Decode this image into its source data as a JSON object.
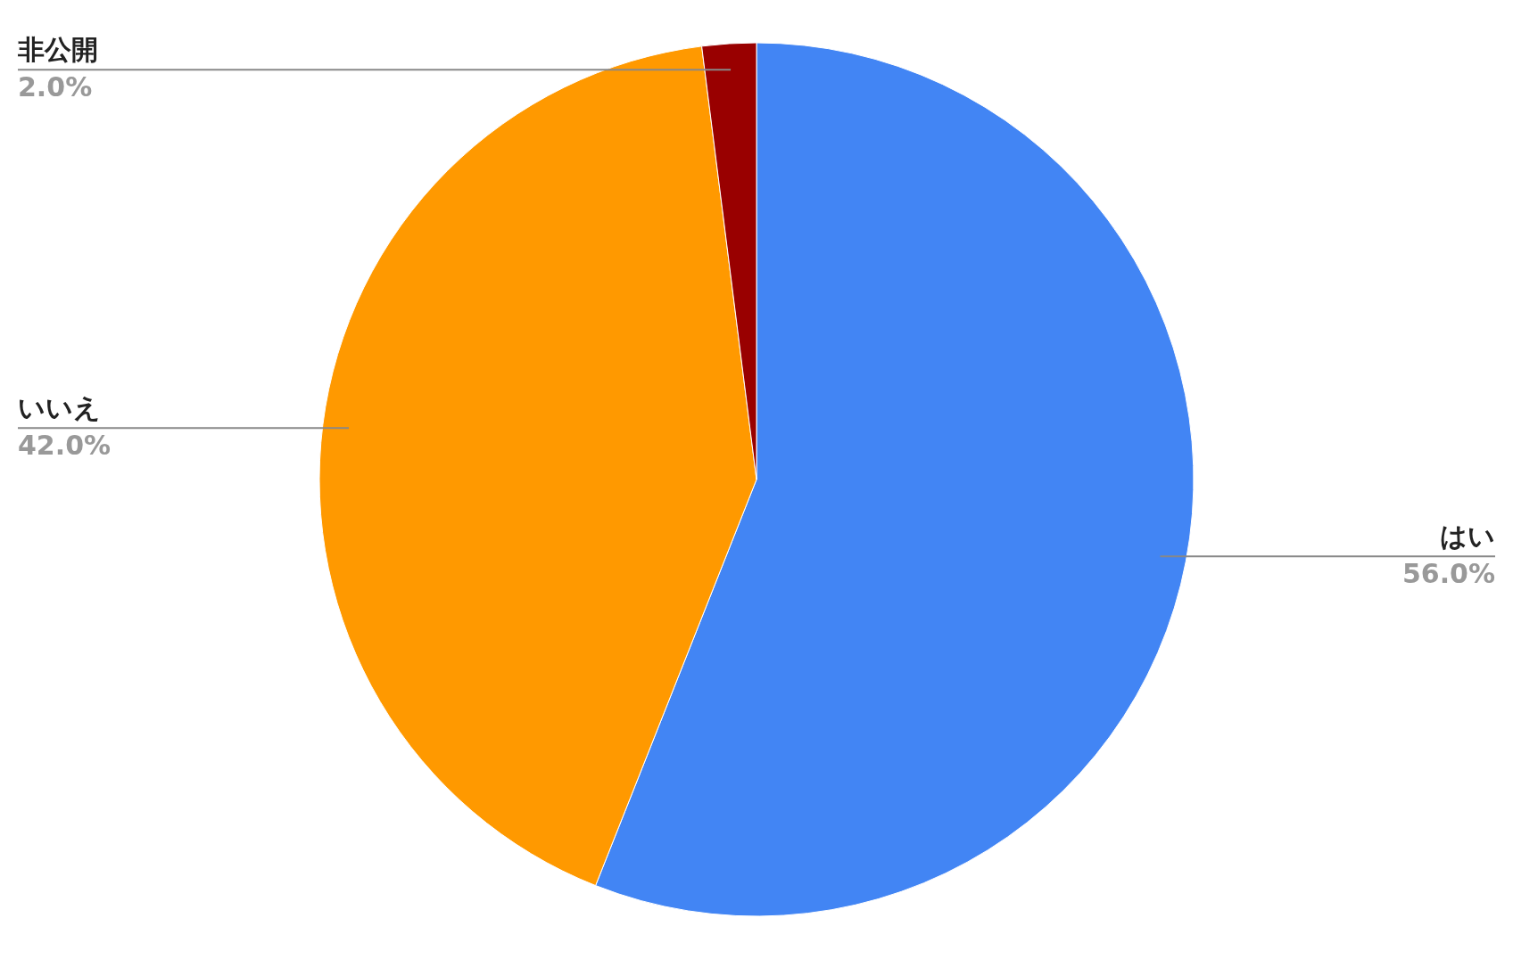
{
  "chart_data": {
    "type": "pie",
    "categories": [
      "はい",
      "いいえ",
      "非公開"
    ],
    "values": [
      56,
      42,
      2
    ],
    "colors": [
      "#4285f4",
      "#ff9900",
      "#990000"
    ],
    "value_labels": [
      "56.0%",
      "42.0%",
      "2.0%"
    ]
  }
}
